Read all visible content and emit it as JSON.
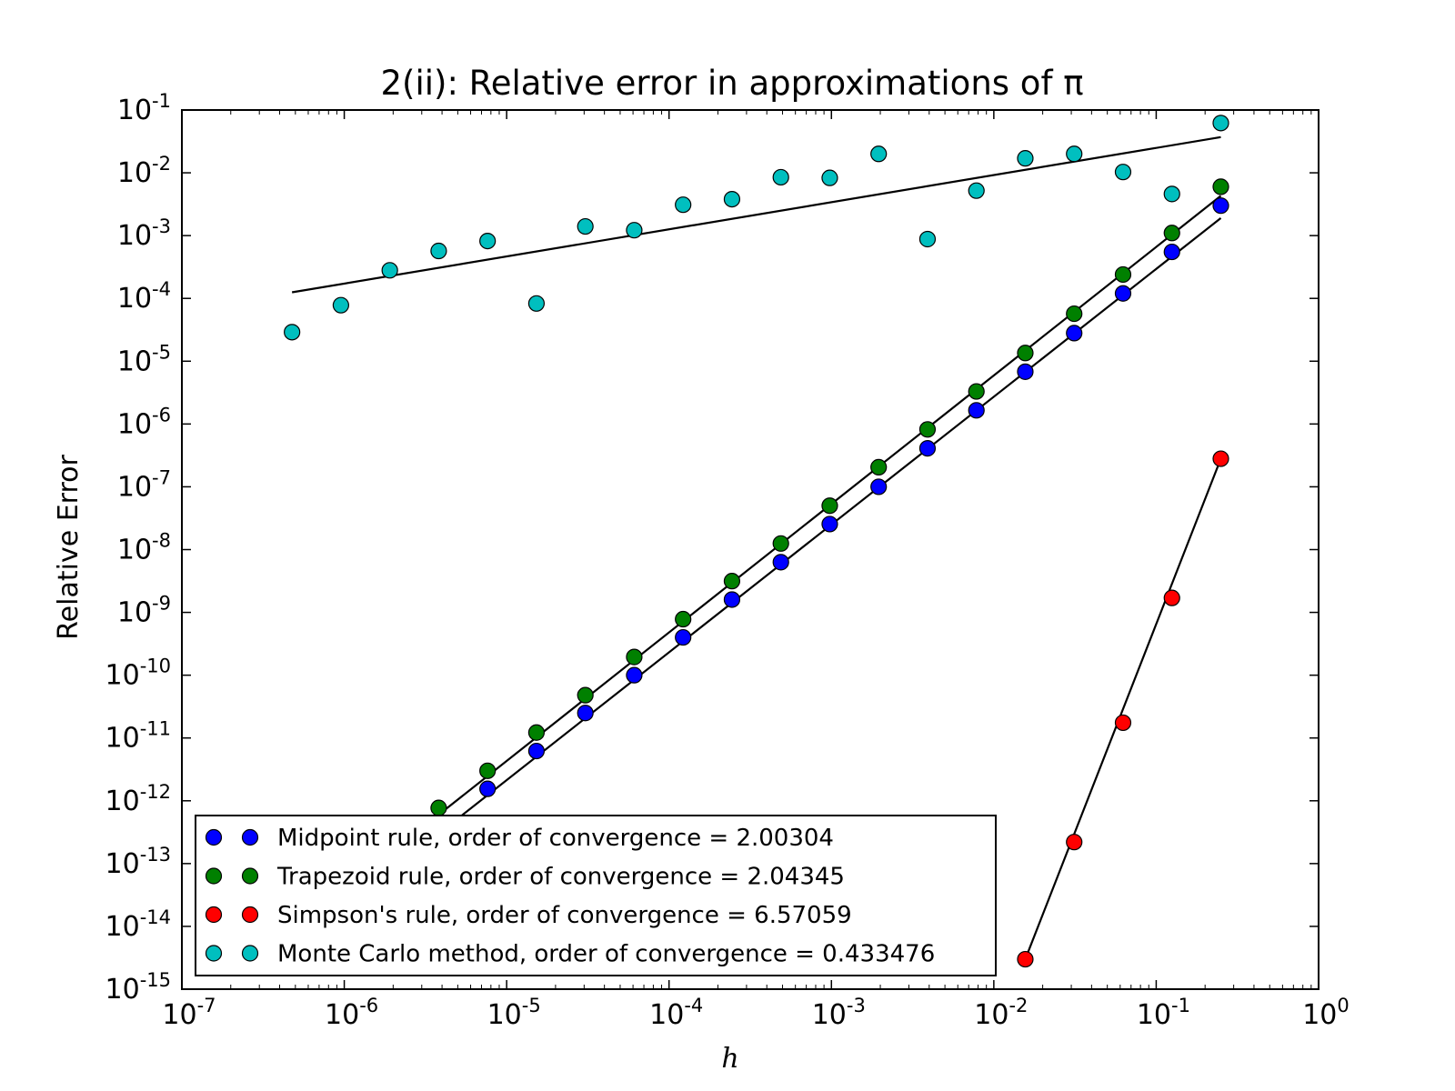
{
  "chart_data": {
    "type": "scatter",
    "title": "2(ii): Relative error in approximations of π",
    "xlabel": "h",
    "ylabel": "Relative Error",
    "xscale": "log",
    "yscale": "log",
    "xlim": [
      1e-07,
      1
    ],
    "ylim": [
      1e-15,
      0.1
    ],
    "grid": false,
    "legend_position": "lower-left",
    "x_tick_exponents": [
      -7,
      -6,
      -5,
      -4,
      -3,
      -2,
      -1,
      0
    ],
    "y_tick_exponents": [
      -1,
      -2,
      -3,
      -4,
      -5,
      -6,
      -7,
      -8,
      -9,
      -10,
      -11,
      -12,
      -13,
      -14,
      -15
    ],
    "series": [
      {
        "name": "Midpoint rule, order of convergence = 2.00304",
        "color": "#0000ff",
        "x": [
          0.25,
          0.125,
          0.0625,
          0.03125,
          0.015625,
          0.0078125,
          0.00390625,
          0.001953125,
          0.0009765625,
          0.00048828125,
          0.000244140625,
          0.0001220703125,
          6.103515625e-05,
          3.0517578125e-05,
          1.52587890625e-05,
          7.62939453125e-06,
          3.814697265625e-06
        ],
        "y": [
          0.003,
          0.00055,
          0.00012,
          2.8e-05,
          6.8e-06,
          1.65e-06,
          4.1e-07,
          1e-07,
          2.55e-08,
          6.3e-09,
          1.6e-09,
          4e-10,
          1e-10,
          2.5e-11,
          6.2e-12,
          1.55e-12,
          3.9e-13
        ],
        "fit": {
          "x": [
            3.814697265625e-06,
            0.25
          ],
          "y": [
            3e-13,
            0.0019
          ]
        }
      },
      {
        "name": "Trapezoid rule, order of convergence = 2.04345",
        "color": "#008000",
        "x": [
          0.25,
          0.125,
          0.0625,
          0.03125,
          0.015625,
          0.0078125,
          0.00390625,
          0.001953125,
          0.0009765625,
          0.00048828125,
          0.000244140625,
          0.0001220703125,
          6.103515625e-05,
          3.0517578125e-05,
          1.52587890625e-05,
          7.62939453125e-06,
          3.814697265625e-06
        ],
        "y": [
          0.006,
          0.0011,
          0.00024,
          5.7e-05,
          1.35e-05,
          3.3e-06,
          8.2e-07,
          2.05e-07,
          5e-08,
          1.25e-08,
          3.15e-09,
          7.8e-10,
          1.95e-10,
          4.8e-11,
          1.22e-11,
          3e-12,
          7.7e-13
        ],
        "fit": {
          "x": [
            3.814697265625e-06,
            0.25
          ],
          "y": [
            6e-13,
            0.0043
          ]
        }
      },
      {
        "name": "Simpson's rule, order of convergence = 6.57059",
        "color": "#ff0000",
        "x": [
          0.25,
          0.125,
          0.0625,
          0.03125,
          0.015625
        ],
        "y": [
          2.8e-07,
          1.7e-09,
          1.75e-11,
          2.2e-13,
          3e-15
        ],
        "fit": {
          "x": [
            0.015625,
            0.25
          ],
          "y": [
            3e-15,
            2.8e-07
          ]
        }
      },
      {
        "name": "Monte Carlo method, order of convergence = 0.433476",
        "color": "#00bfbf",
        "x": [
          0.25,
          0.125,
          0.0625,
          0.03125,
          0.015625,
          0.0078125,
          0.00390625,
          0.001953125,
          0.0009765625,
          0.00048828125,
          0.000244140625,
          0.0001220703125,
          6.103515625e-05,
          3.0517578125e-05,
          1.52587890625e-05,
          7.62939453125e-06,
          3.814697265625e-06,
          1.9073486328125e-06,
          9.5367431640625e-07,
          4.76837158203125e-07
        ],
        "y": [
          0.062,
          0.0046,
          0.0103,
          0.02,
          0.017,
          0.0052,
          0.00088,
          0.02,
          0.0083,
          0.0085,
          0.0038,
          0.0031,
          0.00122,
          0.0014,
          8.3e-05,
          0.00082,
          0.00057,
          0.00028,
          7.8e-05,
          2.9e-05
        ],
        "fit": {
          "x": [
            4.76837158203125e-07,
            0.25
          ],
          "y": [
            0.000125,
            0.037
          ]
        }
      }
    ]
  }
}
